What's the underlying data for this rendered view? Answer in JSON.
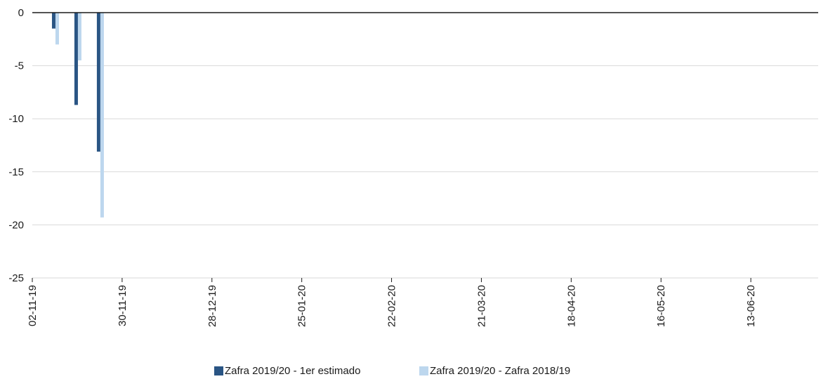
{
  "chart_data": {
    "type": "bar",
    "title": "",
    "xlabel": "",
    "ylabel": "",
    "ylim": [
      -25,
      0
    ],
    "yticks": [
      0,
      -5,
      -10,
      -15,
      -20,
      -25
    ],
    "x_date_range": [
      "2019-11-02",
      "2020-07-04"
    ],
    "xtick_labels": [
      "02-11-19",
      "30-11-19",
      "28-12-19",
      "25-01-20",
      "22-02-20",
      "21-03-20",
      "18-04-20",
      "16-05-20",
      "13-06-20"
    ],
    "xtick_dates": [
      "2019-11-02",
      "2019-11-30",
      "2019-12-28",
      "2020-01-25",
      "2020-02-22",
      "2020-03-21",
      "2020-04-18",
      "2020-05-16",
      "2020-06-13"
    ],
    "grid": true,
    "legend_position": "bottom",
    "series": [
      {
        "name": "Zafra 2019/20 - 1er estimado",
        "color": "#2a5584",
        "dates": [
          "2019-11-09",
          "2019-11-16",
          "2019-11-23"
        ],
        "values": [
          -1.5,
          -8.7,
          -13.1
        ]
      },
      {
        "name": "Zafra 2019/20 - Zafra 2018/19",
        "color": "#bdd7ee",
        "dates": [
          "2019-11-09",
          "2019-11-16",
          "2019-11-23"
        ],
        "values": [
          -3.0,
          -4.5,
          -19.3
        ]
      }
    ]
  }
}
